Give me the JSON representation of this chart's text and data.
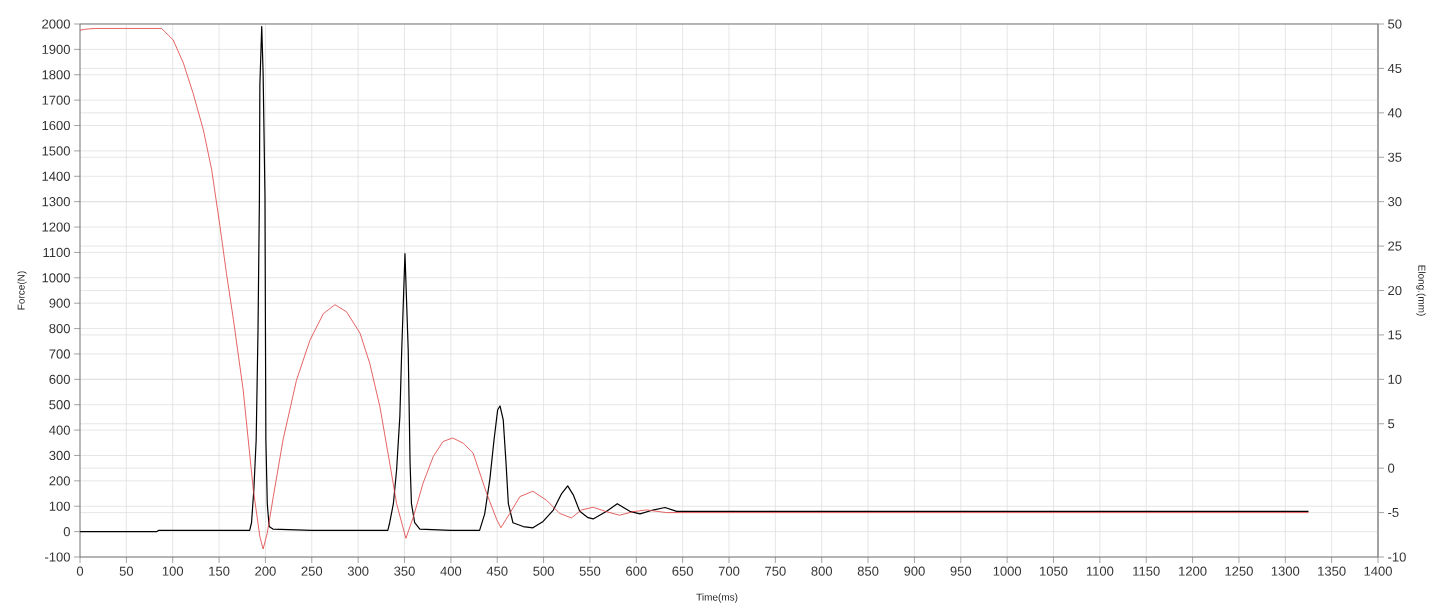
{
  "chart_data": {
    "type": "line",
    "xlabel": "Time(ms)",
    "ylabel": "Force(N)",
    "y2label": "Elong.(mm)",
    "xlim": [
      0,
      1400
    ],
    "xticks": [
      0,
      50,
      100,
      150,
      200,
      250,
      300,
      350,
      400,
      450,
      500,
      550,
      600,
      650,
      700,
      750,
      800,
      850,
      900,
      950,
      1000,
      1050,
      1100,
      1150,
      1200,
      1250,
      1300,
      1350,
      1400
    ],
    "ylim": [
      -100,
      2000
    ],
    "yticks": [
      -100,
      0,
      100,
      200,
      300,
      400,
      500,
      600,
      700,
      800,
      900,
      1000,
      1100,
      1200,
      1300,
      1400,
      1500,
      1600,
      1700,
      1800,
      1900,
      2000
    ],
    "y2lim": [
      -10,
      50
    ],
    "y2ticks": [
      -10,
      -5,
      0,
      5,
      10,
      15,
      20,
      25,
      30,
      35,
      40,
      45,
      50
    ],
    "grid": true,
    "series": [
      {
        "color": "#000000",
        "x": [
          0,
          10,
          30,
          50,
          70,
          83,
          85,
          100,
          120,
          150,
          170,
          183,
          185,
          187.5,
          190,
          192,
          193.5,
          194,
          196,
          197.5,
          199.5,
          200,
          200.5,
          202,
          204,
          208,
          250,
          300,
          332,
          334,
          338,
          341.5,
          345,
          347,
          350.5,
          354,
          356,
          357.5,
          361,
          366.5,
          400,
          431,
          436.5,
          442,
          446.5,
          450.5,
          453,
          456.5,
          459.5,
          462,
          467,
          478,
          488.5,
          499.5,
          510.5,
          519.5,
          526,
          532,
          539,
          548,
          553.5,
          568,
          579.5,
          593,
          604,
          618,
          631,
          643.5,
          661.5,
          700,
          800,
          900,
          1000,
          1100,
          1200,
          1325
        ],
        "values": [
          0,
          0,
          0,
          0,
          0,
          0,
          5,
          5,
          5,
          5,
          5,
          5,
          35,
          165,
          360,
          795,
          1310,
          1760,
          1990,
          1805,
          1325,
          810,
          360,
          110,
          20,
          10,
          5,
          5,
          5,
          35,
          110,
          245,
          455,
          715,
          1095,
          715,
          270,
          110,
          35,
          10,
          5,
          5,
          70,
          205,
          360,
          480,
          495,
          440,
          270,
          110,
          35,
          20,
          15,
          40,
          85,
          150,
          180,
          145,
          80,
          55,
          50,
          80,
          110,
          80,
          70,
          85,
          95,
          80,
          80,
          80,
          80,
          80,
          80,
          80,
          80,
          80
        ]
      },
      {
        "color": "#e03c3c",
        "axis": "y2",
        "x": [
          0,
          5,
          15,
          30,
          60,
          88,
          100.5,
          111.5,
          122,
          133,
          142,
          151,
          158,
          165.5,
          176,
          187,
          194,
          197.5,
          202,
          208.5,
          219,
          233.5,
          248,
          262.5,
          275,
          287.5,
          302,
          312.5,
          323.5,
          334,
          341.5,
          351.5,
          359.5,
          370,
          381,
          391.5,
          402,
          413.5,
          424,
          438.5,
          449.5,
          454,
          463.5,
          474.5,
          488.5,
          503,
          517.5,
          530,
          541,
          553.5,
          568,
          582,
          596.5,
          611,
          632.5,
          700,
          800,
          900,
          1000,
          1100,
          1200,
          1325
        ],
        "values": [
          49.3,
          49.4,
          49.5,
          49.5,
          49.5,
          49.5,
          48.2,
          45.6,
          42.2,
          38.1,
          33.6,
          27.2,
          21.9,
          16.7,
          8.8,
          -2.5,
          -7.7,
          -9.1,
          -7.3,
          -3.2,
          3.2,
          9.9,
          14.4,
          17.4,
          18.4,
          17.6,
          15.2,
          11.8,
          6.9,
          0.6,
          -4.0,
          -7.9,
          -5.5,
          -1.7,
          1.3,
          3.0,
          3.4,
          2.8,
          1.7,
          -2.8,
          -5.8,
          -6.7,
          -5.1,
          -3.2,
          -2.6,
          -3.6,
          -5.1,
          -5.6,
          -4.7,
          -4.4,
          -4.9,
          -5.3,
          -4.9,
          -4.7,
          -5,
          -5,
          -5,
          -5,
          -5,
          -5,
          -5,
          -5
        ]
      }
    ]
  }
}
